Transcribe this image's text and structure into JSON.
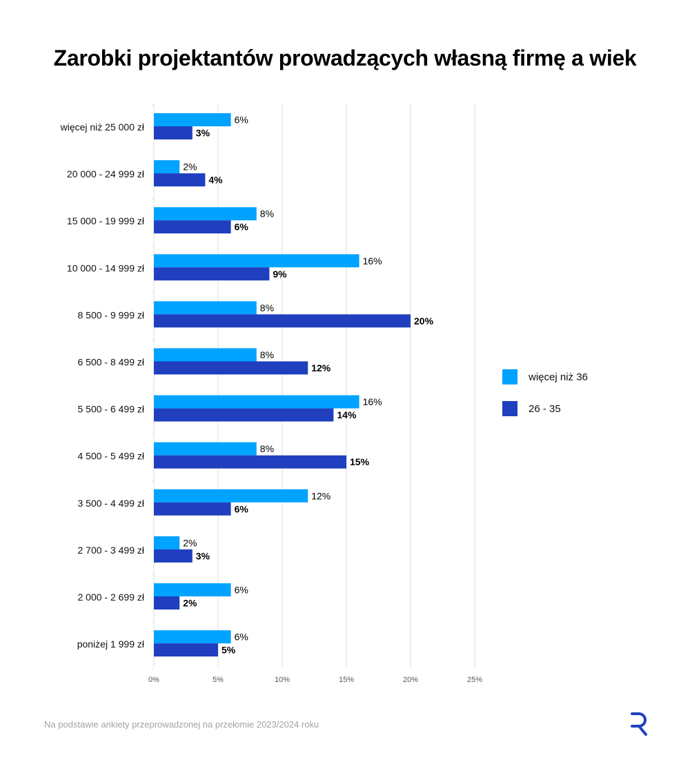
{
  "title": "Zarobki projektantów prowadzących własną firmę a wiek",
  "footnote": "Na podstawie ankiety przeprowadzonej na przełomie 2023/2024 roku",
  "logo": "R",
  "colors": {
    "series_older": "#00a3ff",
    "series_younger": "#1f3fbf",
    "grid": "#dcdcdc",
    "axis_text": "#555555"
  },
  "chart_data": {
    "type": "bar",
    "orientation": "horizontal",
    "title": "Zarobki projektantów prowadzących własną firmę a wiek",
    "categories": [
      "więcej niż 25 000 zł",
      "20 000 - 24 999 zł",
      "15 000 - 19 999 zł",
      "10 000 - 14 999 zł",
      "8 500 - 9 999 zł",
      "6 500 - 8 499 zł",
      "5 500 - 6 499 zł",
      "4 500 - 5 499 zł",
      "3 500 - 4 499 zł",
      "2 700 - 3 499 zł",
      "2 000 - 2 699 zł",
      "poniżej 1 999 zł"
    ],
    "series": [
      {
        "name": "więcej niż 36",
        "values": [
          6,
          2,
          8,
          16,
          8,
          8,
          16,
          8,
          12,
          2,
          6,
          6
        ],
        "labels": [
          "6%",
          "2%",
          "8%",
          "16%",
          "8%",
          "8%",
          "16%",
          "8%",
          "12%",
          "2%",
          "6%",
          "6%"
        ],
        "bold_labels": false
      },
      {
        "name": "26 - 35",
        "values": [
          3,
          4,
          6,
          9,
          20,
          12,
          14,
          15,
          6,
          3,
          2,
          5
        ],
        "labels": [
          "3%",
          "4%",
          "6%",
          "9%",
          "20%",
          "12%",
          "14%",
          "15%",
          "6%",
          "3%",
          "2%",
          "5%"
        ],
        "bold_labels": true
      }
    ],
    "xlim": [
      0,
      25
    ],
    "xticks": [
      0,
      5,
      10,
      15,
      20,
      25
    ],
    "xtick_labels": [
      "0%",
      "5%",
      "10%",
      "15%",
      "20%",
      "25%"
    ],
    "grid": true,
    "legend_position": "right"
  }
}
